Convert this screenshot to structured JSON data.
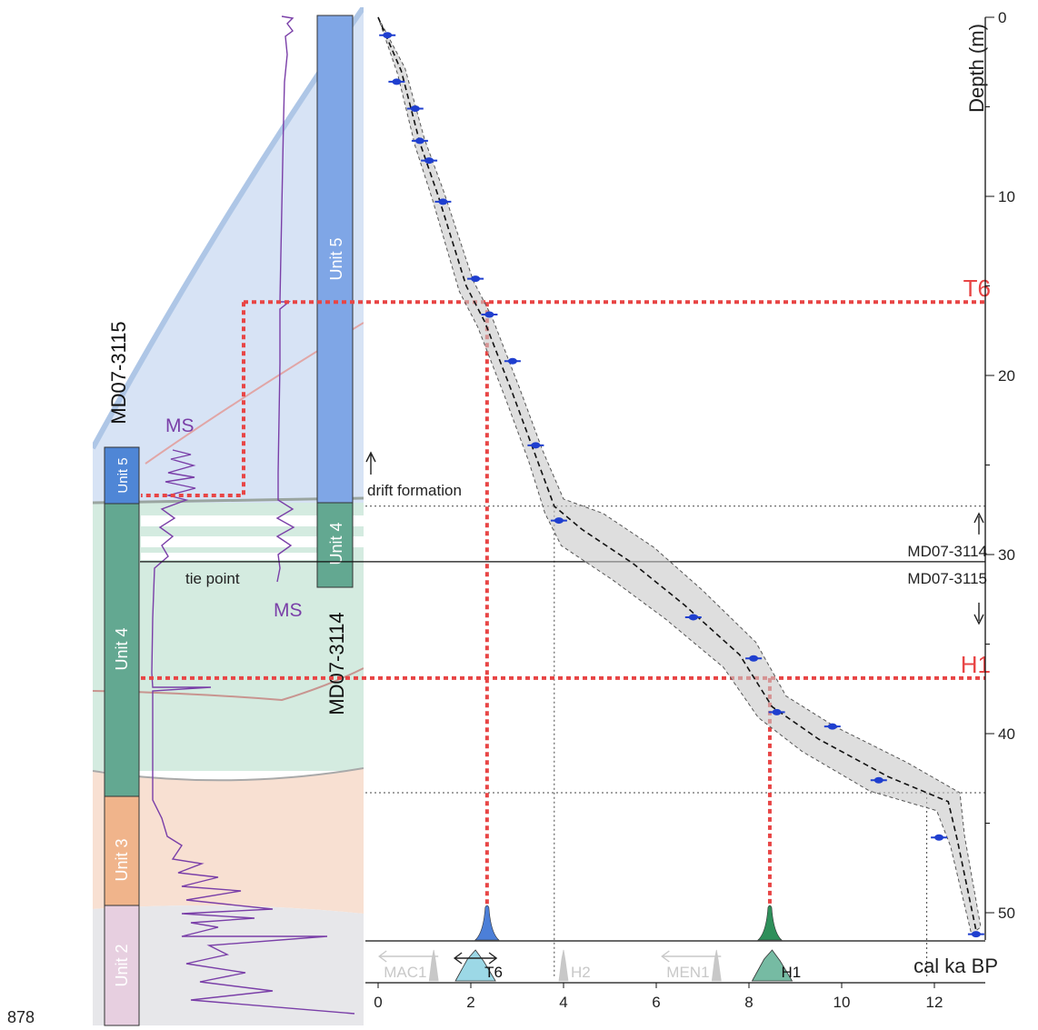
{
  "page_number": "878",
  "chart_data": {
    "type": "scatter",
    "title": "",
    "xlabel": "cal ka BP",
    "ylabel": "Depth (m)",
    "xlim": [
      0,
      13
    ],
    "ylim": [
      0,
      51.5
    ],
    "x_ticks": [
      0,
      2,
      4,
      6,
      8,
      10,
      12
    ],
    "y_ticks": [
      0,
      10,
      20,
      30,
      40,
      50
    ],
    "grid": false,
    "age_depth_model": {
      "median": [
        [
          0,
          0
        ],
        [
          0.5,
          3
        ],
        [
          0.9,
          7
        ],
        [
          1.3,
          10
        ],
        [
          1.9,
          15
        ],
        [
          2.3,
          17
        ],
        [
          2.9,
          21
        ],
        [
          3.4,
          24.5
        ],
        [
          3.8,
          27.3
        ],
        [
          4.4,
          28.6
        ],
        [
          5.5,
          30.5
        ],
        [
          6.6,
          32.8
        ],
        [
          7.8,
          35.6
        ],
        [
          8.5,
          38.5
        ],
        [
          9.5,
          40.3
        ],
        [
          11,
          42.4
        ],
        [
          12.3,
          43.8
        ],
        [
          12.5,
          46
        ],
        [
          12.9,
          51
        ]
      ],
      "ci_width": [
        0,
        0.08,
        0.1,
        0.12,
        0.15,
        0.15,
        0.15,
        0.15,
        0.2,
        0.45,
        0.45,
        0.4,
        0.35,
        0.3,
        0.35,
        0.4,
        0.25,
        0.15,
        0.1
      ]
    },
    "dated_samples": [
      {
        "age": 0.2,
        "depth": 1
      },
      {
        "age": 0.4,
        "depth": 3.6
      },
      {
        "age": 0.8,
        "depth": 5.1
      },
      {
        "age": 0.9,
        "depth": 6.9
      },
      {
        "age": 1.1,
        "depth": 8
      },
      {
        "age": 1.4,
        "depth": 10.3
      },
      {
        "age": 2.1,
        "depth": 14.6
      },
      {
        "age": 2.4,
        "depth": 16.6
      },
      {
        "age": 2.9,
        "depth": 19.2
      },
      {
        "age": 3.4,
        "depth": 23.9
      },
      {
        "age": 3.9,
        "depth": 28.1
      },
      {
        "age": 6.8,
        "depth": 33.5
      },
      {
        "age": 8.1,
        "depth": 35.8
      },
      {
        "age": 8.6,
        "depth": 38.8
      },
      {
        "age": 9.8,
        "depth": 39.6
      },
      {
        "age": 10.8,
        "depth": 42.6
      },
      {
        "age": 12.1,
        "depth": 45.8
      },
      {
        "age": 12.9,
        "depth": 51.2
      }
    ],
    "horizons": [
      {
        "label": "T6",
        "depth": 15.9,
        "age": 2.35,
        "color": "#e84545"
      },
      {
        "label": "H1",
        "depth": 36.9,
        "age": 8.45,
        "color": "#e84545"
      }
    ],
    "core_boundary": {
      "depth": 30.4,
      "upper_label": "MD07-3114",
      "lower_label": "MD07-3115"
    },
    "unit_boundaries_depth": [
      27.3,
      43.3
    ],
    "annotations": {
      "drift": "drift formation"
    },
    "event_pdfs": [
      {
        "label": "T6",
        "age": 2.35,
        "color": "#4c7fd8"
      },
      {
        "label": "H1",
        "age": 8.45,
        "color": "#2e8f5a"
      }
    ],
    "strip_events": [
      {
        "label": "MAC1",
        "age": 1.2,
        "style": "grey"
      },
      {
        "label": "T6",
        "age": 2.1,
        "style": "active"
      },
      {
        "label": "H2",
        "age": 4.0,
        "style": "grey"
      },
      {
        "label": "MEN1",
        "age": 7.3,
        "style": "grey"
      },
      {
        "label": "H1",
        "age": 8.5,
        "style": "active"
      }
    ]
  },
  "core_panel": {
    "core_labels": [
      "MD07-3115",
      "MD07-3114"
    ],
    "left_core_units": [
      {
        "label": "Unit 5",
        "color": "#4f86d6",
        "text_color": "#ffffff"
      },
      {
        "label": "Unit 4",
        "color": "#63a891",
        "text_color": "#ffffff"
      },
      {
        "label": "Unit 3",
        "color": "#f0b48b",
        "text_color": "#ffffff"
      },
      {
        "label": "Unit 2",
        "color": "#e7cfe0",
        "text_color": "#ffffff"
      }
    ],
    "right_core_units": [
      {
        "label": "Unit 5",
        "color": "#7fa6e6",
        "text_color": "#ffffff"
      },
      {
        "label": "Unit 4",
        "color": "#63a891",
        "text_color": "#ffffff"
      }
    ],
    "ms_label_left": "MS",
    "ms_label_right": "MS",
    "tie_point_label": "tie point",
    "colors": {
      "ms_curve": "#7a3fa8",
      "blue_layer": "#d7e3f5",
      "green_layer": "#d4ebe0",
      "orange_layer": "#f8e0d2",
      "grey_layer": "#e7e7ea"
    }
  }
}
